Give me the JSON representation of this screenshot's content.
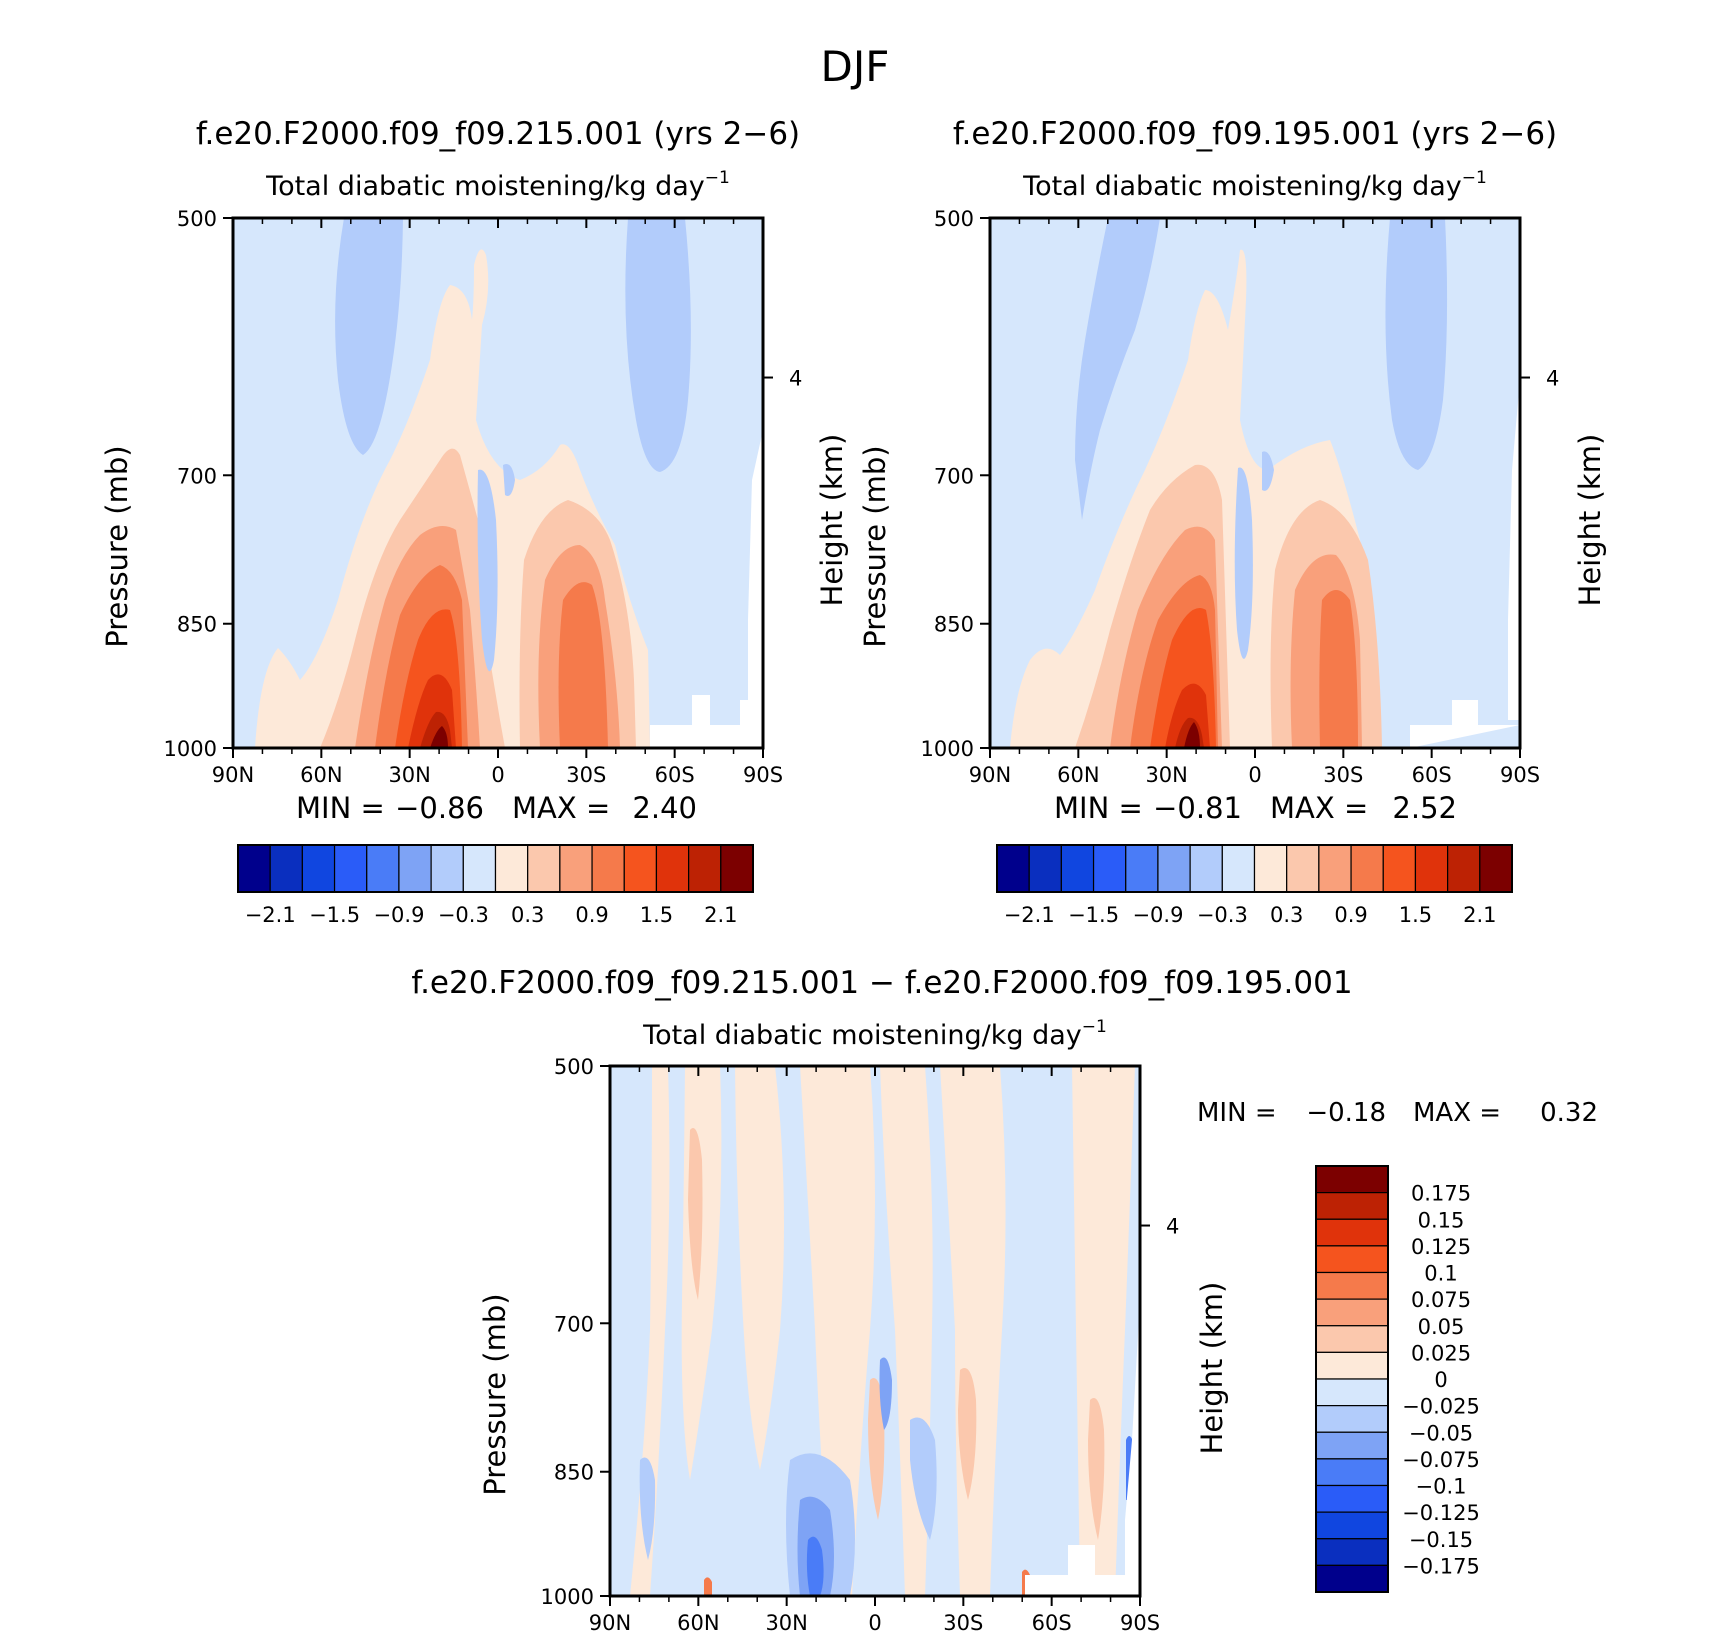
{
  "figure_title": "DJF",
  "palettes": {
    "main": [
      "#00008c",
      "#0a2fbf",
      "#1046e0",
      "#2a5cf8",
      "#4a7cf7",
      "#7ea3f5",
      "#b2ccfb",
      "#d6e7fc",
      "#fde9d9",
      "#fbc8ad",
      "#f9a07b",
      "#f57a4b",
      "#f5541e",
      "#e0330b",
      "#bd2204",
      "#7c0000"
    ],
    "diff": [
      "#00008c",
      "#0a2fbf",
      "#1046e0",
      "#2a5cf8",
      "#4a7cf7",
      "#7ea3f5",
      "#b2ccfb",
      "#d6e7fc",
      "#fde9d9",
      "#fbc8ad",
      "#f9a07b",
      "#f57a4b",
      "#f5541e",
      "#e0330b",
      "#bd2204",
      "#7c0000"
    ]
  },
  "chart_data": [
    {
      "type": "heatmap",
      "title": "f.e20.F2000.f09_f09.215.001 (yrs 2−6)",
      "subtitle": "Total diabatic moistening/kg day",
      "subtitle_sup": "−1",
      "ylabel": "Pressure (mb)",
      "y2label": "Height (km)",
      "xticks": [
        "90N",
        "60N",
        "30N",
        "0",
        "30S",
        "60S",
        "90S"
      ],
      "xlim": [
        90,
        -90
      ],
      "yticks": [
        "500",
        "700",
        "850",
        "1000"
      ],
      "ylim": [
        1000,
        500
      ],
      "y2ticks": [
        "4"
      ],
      "min_label": "MIN =",
      "min_value": "−0.86",
      "max_label": "MAX =",
      "max_value": "2.40",
      "min": -0.86,
      "max": 2.4,
      "colorbar_labels": [
        "−2.1",
        "−1.5",
        "−0.9",
        "−0.3",
        "0.3",
        "0.9",
        "1.5",
        "2.1"
      ],
      "colorbar_levels": [
        -2.1,
        -1.8,
        -1.5,
        -1.2,
        -0.9,
        -0.6,
        -0.3,
        0,
        0.3,
        0.6,
        0.9,
        1.2,
        1.5,
        1.8,
        2.1
      ]
    },
    {
      "type": "heatmap",
      "title": "f.e20.F2000.f09_f09.195.001 (yrs 2−6)",
      "subtitle": "Total diabatic moistening/kg day",
      "subtitle_sup": "−1",
      "ylabel": "Pressure (mb)",
      "y2label": "Height (km)",
      "xticks": [
        "90N",
        "60N",
        "30N",
        "0",
        "30S",
        "60S",
        "90S"
      ],
      "xlim": [
        90,
        -90
      ],
      "yticks": [
        "500",
        "700",
        "850",
        "1000"
      ],
      "ylim": [
        1000,
        500
      ],
      "y2ticks": [
        "4"
      ],
      "min_label": "MIN =",
      "min_value": "−0.81",
      "max_label": "MAX =",
      "max_value": "2.52",
      "min": -0.81,
      "max": 2.52,
      "colorbar_labels": [
        "−2.1",
        "−1.5",
        "−0.9",
        "−0.3",
        "0.3",
        "0.9",
        "1.5",
        "2.1"
      ],
      "colorbar_levels": [
        -2.1,
        -1.8,
        -1.5,
        -1.2,
        -0.9,
        -0.6,
        -0.3,
        0,
        0.3,
        0.6,
        0.9,
        1.2,
        1.5,
        1.8,
        2.1
      ]
    },
    {
      "type": "heatmap",
      "title": "f.e20.F2000.f09_f09.215.001 − f.e20.F2000.f09_f09.195.001",
      "subtitle": "Total diabatic moistening/kg day",
      "subtitle_sup": "−1",
      "ylabel": "Pressure (mb)",
      "y2label": "Height (km)",
      "xticks": [
        "90N",
        "60N",
        "30N",
        "0",
        "30S",
        "60S",
        "90S"
      ],
      "xlim": [
        90,
        -90
      ],
      "yticks": [
        "500",
        "700",
        "850",
        "1000"
      ],
      "ylim": [
        1000,
        500
      ],
      "y2ticks": [
        "4"
      ],
      "min_label": "MIN =",
      "min_value": "−0.18",
      "max_label": "MAX =",
      "max_value": "0.32",
      "min": -0.18,
      "max": 0.32,
      "colorbar_labels": [
        "0.175",
        "0.15",
        "0.125",
        "0.1",
        "0.075",
        "0.05",
        "0.025",
        "0",
        "−0.025",
        "−0.05",
        "−0.075",
        "−0.1",
        "−0.125",
        "−0.15",
        "−0.175"
      ],
      "colorbar_levels": [
        0.175,
        0.15,
        0.125,
        0.1,
        0.075,
        0.05,
        0.025,
        0,
        -0.025,
        -0.05,
        -0.075,
        -0.1,
        -0.125,
        -0.15,
        -0.175
      ]
    }
  ]
}
